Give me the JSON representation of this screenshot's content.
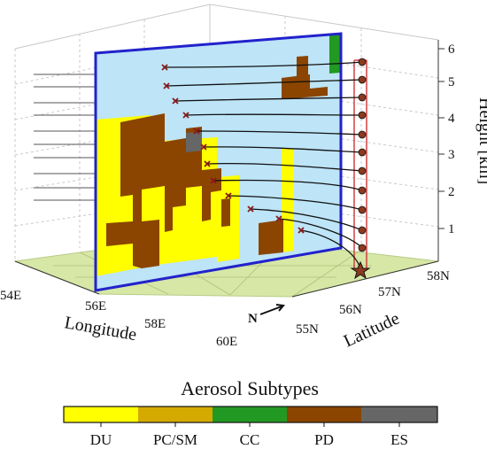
{
  "axes": {
    "longitude": {
      "title": "Longitude",
      "ticks": [
        "54E",
        "56E",
        "58E",
        "60E"
      ]
    },
    "latitude": {
      "title": "Latitude",
      "ticks": [
        "55N",
        "56N",
        "57N",
        "58N"
      ]
    },
    "height": {
      "title": "Height [km]",
      "ticks": [
        "1",
        "2",
        "3",
        "4",
        "5",
        "6"
      ]
    }
  },
  "compass": "N",
  "legend": {
    "title": "Aerosol Subtypes",
    "items": [
      {
        "label": "DU",
        "color": "#ffff00"
      },
      {
        "label": "PC/SM",
        "color": "#d4aa00"
      },
      {
        "label": "CC",
        "color": "#229922"
      },
      {
        "label": "PD",
        "color": "#8b4500"
      },
      {
        "label": "ES",
        "color": "#666666"
      }
    ]
  },
  "colors": {
    "curtain_background": "#bde4f7",
    "curtain_border": "#2222cc",
    "floor": "#d6e7a6",
    "trajectory_line": "#d04040",
    "marker": "#8b3a1f"
  }
}
